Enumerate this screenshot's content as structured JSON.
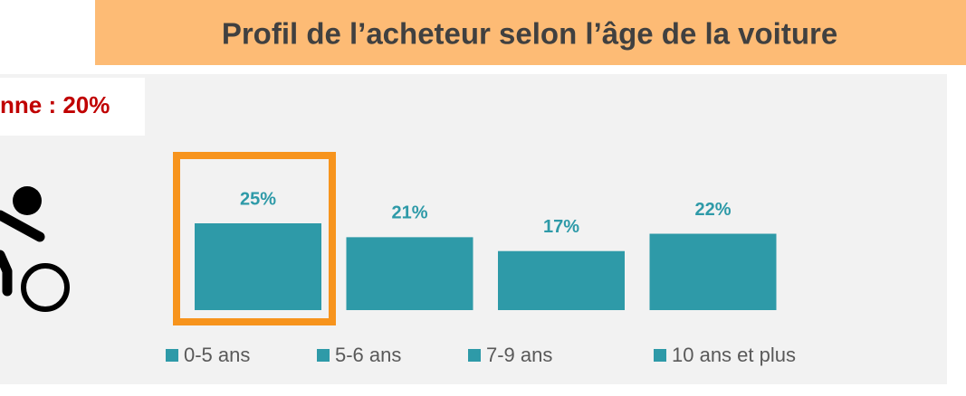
{
  "chart_data": {
    "type": "bar",
    "title": "Profil de l’acheteur selon l’âge de la voiture",
    "annotation": "nne : 20%",
    "categories": [
      "0-5 ans",
      "5-6 ans",
      "7-9 ans",
      "10 ans et plus"
    ],
    "values": [
      25,
      21,
      17,
      22
    ],
    "value_labels": [
      "25%",
      "21%",
      "17%",
      "22%"
    ],
    "color": "#2e9aa8"
  }
}
